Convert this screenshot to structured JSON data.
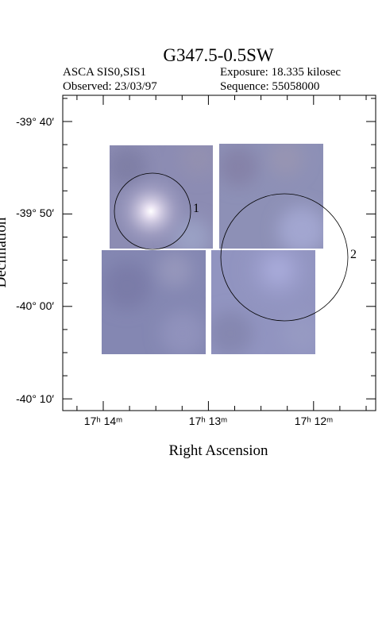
{
  "header": {
    "title": "G347.5-0.5SW",
    "left_lines": [
      "ASCA SIS0,SIS1",
      "Observed: 23/03/97"
    ],
    "right_lines": [
      "Exposure: 18.335 kilosec",
      "Sequence: 55058000"
    ]
  },
  "plot": {
    "x_label": "Right Ascension",
    "y_label": "Declination",
    "x_tick_labels": [
      "17ʰ 14ᵐ",
      "17ʰ 13ᵐ",
      "17ʰ 12ᵐ"
    ],
    "y_tick_labels": [
      "-39° 40′",
      "-39° 50′",
      "-40° 00′",
      "-40° 10′"
    ],
    "regions": [
      "1",
      "2"
    ]
  }
}
